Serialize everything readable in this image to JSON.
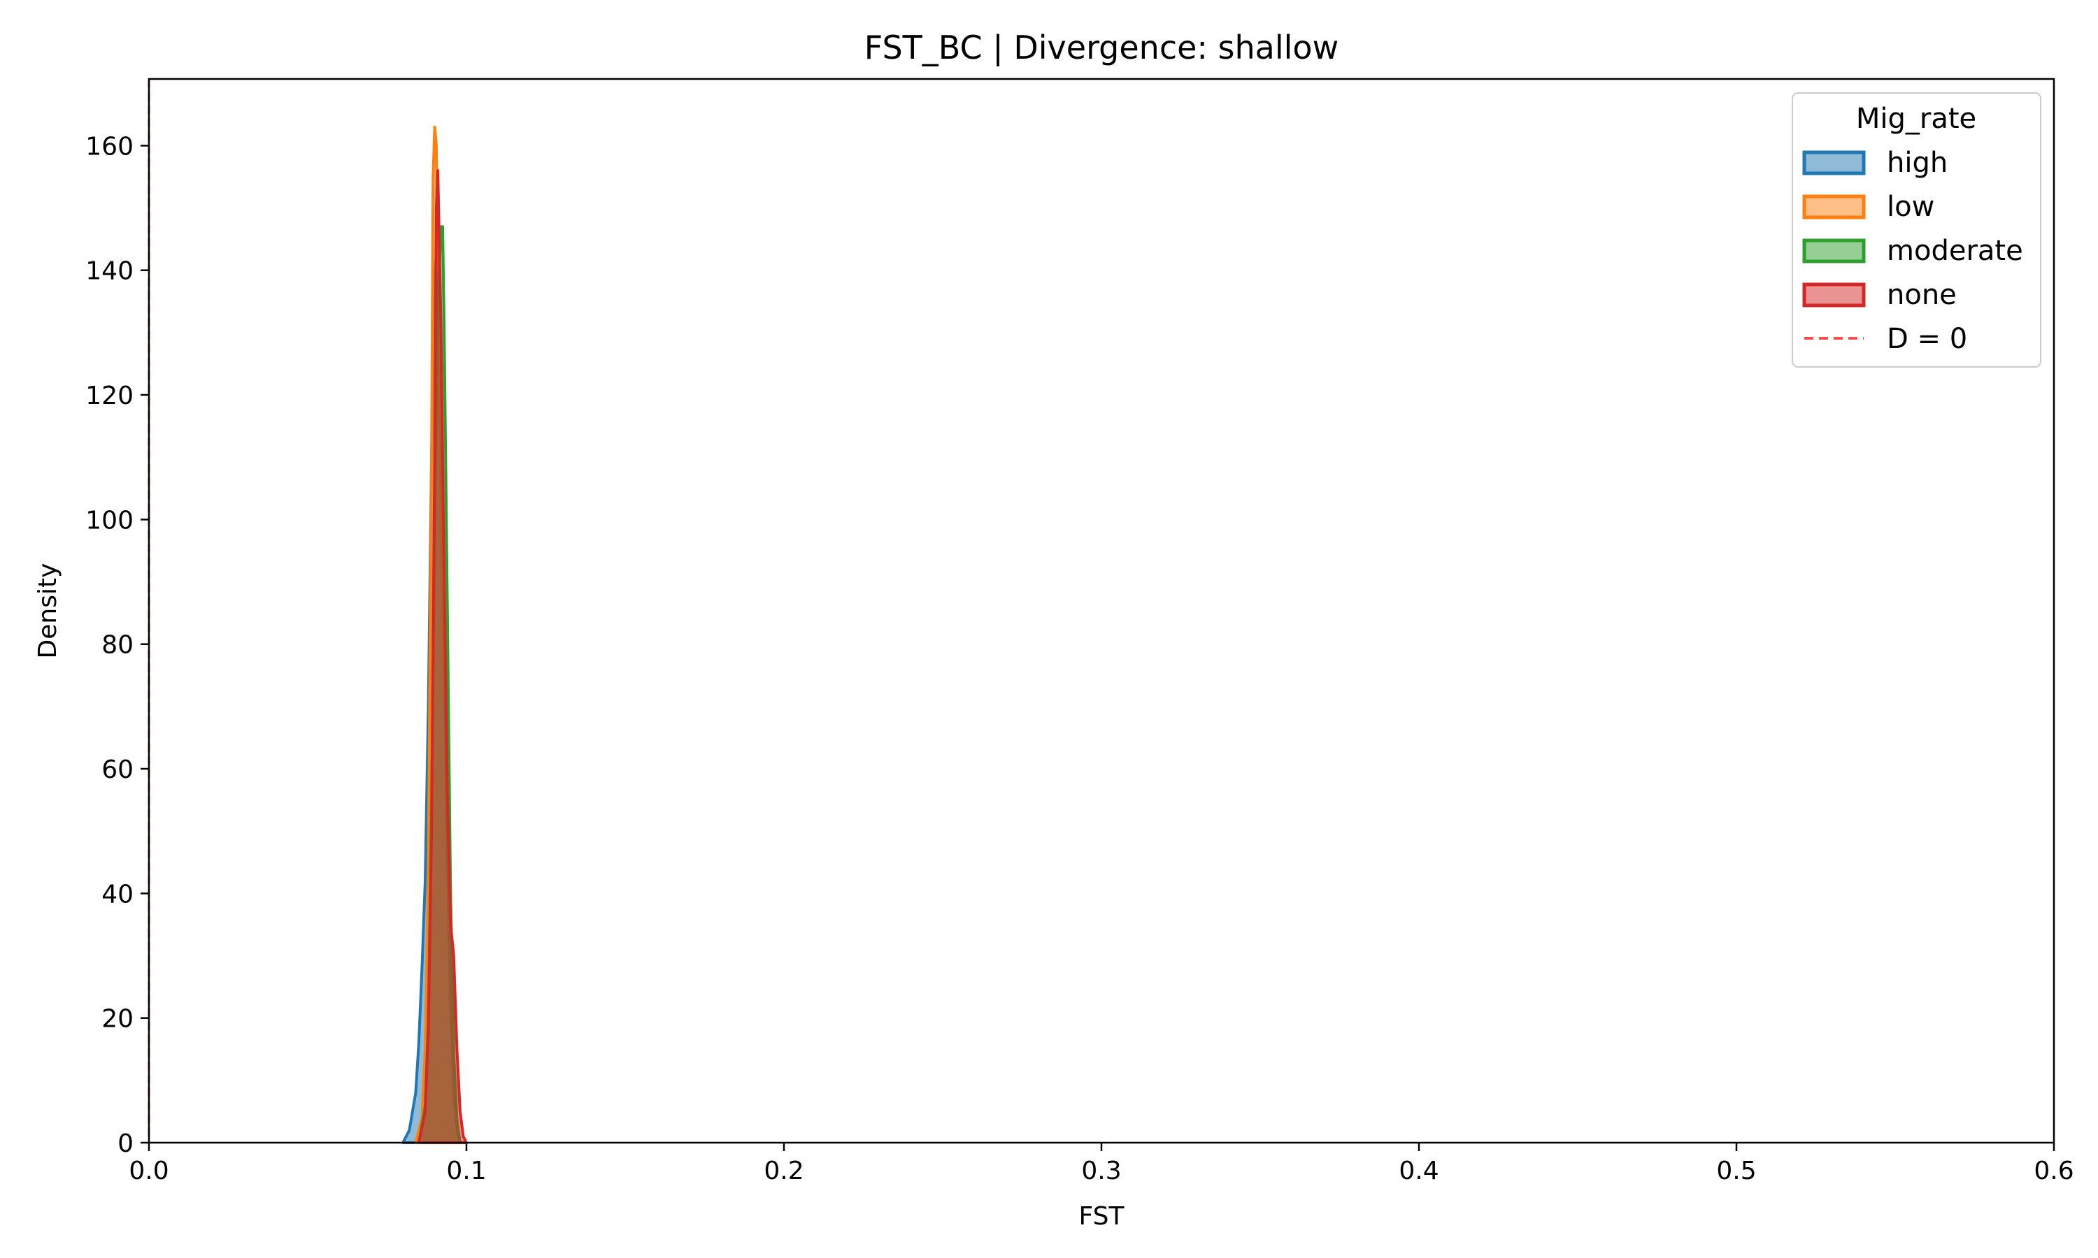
{
  "chart_data": {
    "type": "area",
    "title": "FST_BC | Divergence: shallow",
    "xlabel": "FST",
    "ylabel": "Density",
    "xlim": [
      0.0,
      0.6
    ],
    "ylim": [
      0,
      170.7
    ],
    "xticks": [
      0.0,
      0.1,
      0.2,
      0.3,
      0.4,
      0.5,
      0.6
    ],
    "xtick_labels": [
      "0.0",
      "0.1",
      "0.2",
      "0.3",
      "0.4",
      "0.5",
      "0.6"
    ],
    "yticks": [
      0,
      20,
      40,
      60,
      80,
      100,
      120,
      140,
      160
    ],
    "ytick_labels": [
      "0",
      "20",
      "40",
      "60",
      "80",
      "100",
      "120",
      "140",
      "160"
    ],
    "grid": false,
    "legend": {
      "title": "Mig_rate",
      "placement": "top-right",
      "entries": [
        "high",
        "low",
        "moderate",
        "none",
        "D = 0"
      ]
    },
    "series": [
      {
        "name": "high",
        "color": "#1f77b4",
        "x": [
          0.08,
          0.082,
          0.084,
          0.085,
          0.086,
          0.087,
          0.088,
          0.089,
          0.09,
          0.0905,
          0.091,
          0.092,
          0.093,
          0.094,
          0.095,
          0.096,
          0.097,
          0.098
        ],
        "y": [
          0,
          2,
          8,
          16,
          28,
          42,
          70,
          110,
          138,
          143,
          140,
          120,
          80,
          45,
          22,
          8,
          2,
          0
        ]
      },
      {
        "name": "low",
        "color": "#ff7f0e",
        "x": [
          0.084,
          0.086,
          0.087,
          0.088,
          0.089,
          0.0895,
          0.09,
          0.0905,
          0.091,
          0.092,
          0.093,
          0.094,
          0.095,
          0.096,
          0.097,
          0.098
        ],
        "y": [
          0,
          4,
          15,
          45,
          110,
          155,
          163,
          160,
          140,
          100,
          75,
          68,
          40,
          15,
          4,
          0
        ]
      },
      {
        "name": "moderate",
        "color": "#2ca02c",
        "x": [
          0.085,
          0.087,
          0.088,
          0.089,
          0.09,
          0.091,
          0.092,
          0.0925,
          0.093,
          0.094,
          0.095,
          0.096,
          0.097,
          0.098
        ],
        "y": [
          0,
          6,
          20,
          55,
          100,
          135,
          147,
          147,
          130,
          85,
          40,
          14,
          3,
          0
        ]
      },
      {
        "name": "none",
        "color": "#d62728",
        "x": [
          0.085,
          0.087,
          0.088,
          0.089,
          0.09,
          0.0905,
          0.091,
          0.092,
          0.093,
          0.094,
          0.095,
          0.096,
          0.097,
          0.098,
          0.099,
          0.1
        ],
        "y": [
          0,
          5,
          18,
          50,
          110,
          150,
          156,
          130,
          90,
          55,
          35,
          30,
          15,
          5,
          1,
          0
        ]
      }
    ],
    "reference_line": {
      "name": "D = 0",
      "x": 0.0,
      "color": "#ff0000",
      "style": "dashed"
    }
  }
}
